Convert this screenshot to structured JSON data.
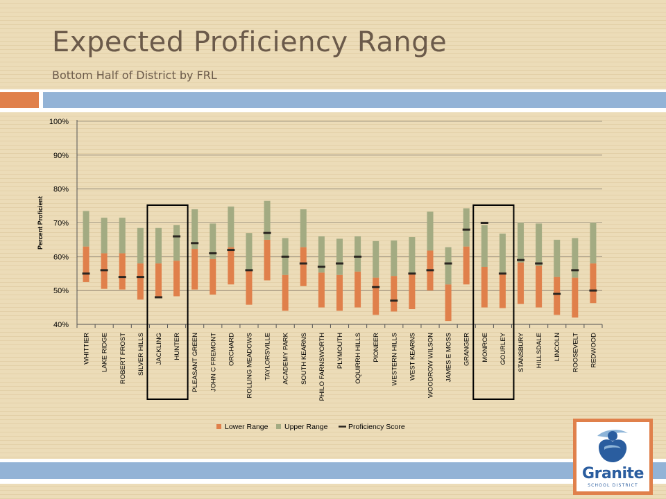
{
  "slide": {
    "title": "Expected Proficiency Range",
    "subtitle": "Bottom Half of District by FRL"
  },
  "logo": {
    "name": "Granite",
    "tagline": "SCHOOL DISTRICT"
  },
  "colors": {
    "lower_range": "#e0804b",
    "upper_range": "#a3ab82",
    "proficiency_score": "#2b2621",
    "highlight_box": "#000000",
    "accent": "#e0804b",
    "rule_blue": "#93b3d6",
    "title_text": "#6b5a4a"
  },
  "chart_data": {
    "type": "bar",
    "subtype": "stacked-floating-range-with-marker",
    "ylabel": "Percent Proficient",
    "xlabel": "",
    "ylim": [
      40,
      100
    ],
    "y_ticks": [
      "40%",
      "50%",
      "60%",
      "70%",
      "80%",
      "90%",
      "100%"
    ],
    "y_tick_values": [
      40,
      50,
      60,
      70,
      80,
      90,
      100
    ],
    "grid": true,
    "legend": [
      "Lower Range",
      "Upper Range",
      "Proficiency Score"
    ],
    "legend_position": "bottom",
    "categories": [
      "WHITTIER",
      "LAKE RIDGE",
      "ROBERT FROST",
      "SILVER HILLS",
      "JACKLING",
      "HUNTER",
      "PLEASANT GREEN",
      "JOHN C FREMONT",
      "ORCHARD",
      "ROLLING MEADOWS",
      "TAYLORSVILLE",
      "ACADEMY PARK",
      "SOUTH KEARNS",
      "PHILO FARNSWORTH",
      "PLYMOUTH",
      "OQUIRRH HILLS",
      "PIONEER",
      "WESTERN HILLS",
      "WEST KEARNS",
      "WOODROW WILSON",
      "JAMES E MOSS",
      "GRANGER",
      "MONROE",
      "GOURLEY",
      "STANSBURY",
      "HILLSDALE",
      "LINCOLN",
      "ROOSEVELT",
      "REDWOOD"
    ],
    "lower_range": [
      [
        52.5,
        63
      ],
      [
        50.5,
        61
      ],
      [
        50.3,
        61
      ],
      [
        47.3,
        58
      ],
      [
        47.8,
        58
      ],
      [
        48.3,
        58.8
      ],
      [
        50.3,
        62.3
      ],
      [
        48.8,
        59.3
      ],
      [
        51.8,
        62.8
      ],
      [
        45.8,
        55.8
      ],
      [
        53,
        65
      ],
      [
        44,
        54.6
      ],
      [
        51.3,
        62.8
      ],
      [
        45,
        55.3
      ],
      [
        44,
        54.6
      ],
      [
        45,
        55.6
      ],
      [
        42.8,
        53.8
      ],
      [
        43.8,
        54.3
      ],
      [
        44.5,
        55
      ],
      [
        50,
        61.8
      ],
      [
        41,
        51.8
      ],
      [
        51.8,
        63
      ],
      [
        45,
        57
      ],
      [
        44.8,
        55.3
      ],
      [
        46,
        58.3
      ],
      [
        45,
        57.3
      ],
      [
        42.8,
        54
      ],
      [
        42,
        53.8
      ],
      [
        46.3,
        58
      ]
    ],
    "upper_range": [
      [
        63,
        73.5
      ],
      [
        61,
        71.5
      ],
      [
        61,
        71.5
      ],
      [
        58,
        68.5
      ],
      [
        58,
        68.5
      ],
      [
        58.8,
        69.3
      ],
      [
        62.3,
        74
      ],
      [
        59.3,
        69.8
      ],
      [
        62.8,
        74.8
      ],
      [
        55.8,
        67
      ],
      [
        65,
        76.5
      ],
      [
        54.6,
        65.5
      ],
      [
        62.8,
        74
      ],
      [
        55.3,
        66
      ],
      [
        54.6,
        65.3
      ],
      [
        55.6,
        66
      ],
      [
        53.8,
        64.6
      ],
      [
        54.3,
        64.8
      ],
      [
        55,
        65.8
      ],
      [
        61.8,
        73.3
      ],
      [
        51.8,
        62.8
      ],
      [
        63,
        74.3
      ],
      [
        57,
        69.3
      ],
      [
        55.3,
        66.8
      ],
      [
        58.3,
        70
      ],
      [
        57.3,
        69.8
      ],
      [
        54,
        65
      ],
      [
        53.8,
        65.5
      ],
      [
        58,
        70
      ]
    ],
    "proficiency_score": [
      55,
      56,
      54,
      54,
      48,
      66,
      64,
      61,
      62,
      56,
      67,
      60,
      58,
      57,
      58,
      60,
      51,
      47,
      55,
      56,
      58,
      68,
      70,
      55,
      59,
      58,
      49,
      56,
      50
    ],
    "highlighted": [
      [
        "JACKLING",
        "HUNTER"
      ],
      [
        "MONROE",
        "GOURLEY"
      ]
    ]
  }
}
